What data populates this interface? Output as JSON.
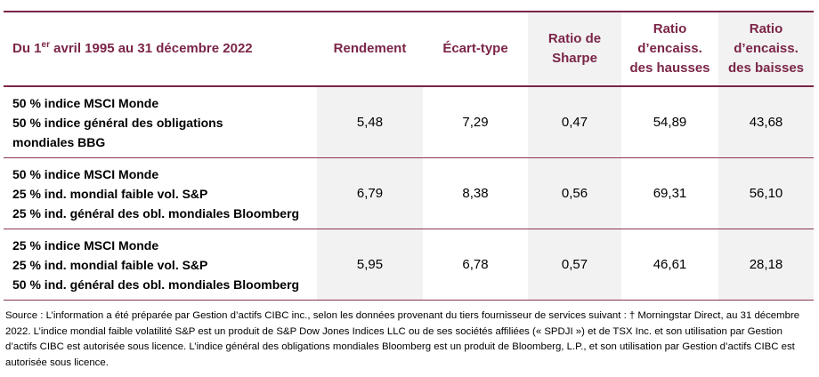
{
  "header": {
    "period_prefix": "Du 1",
    "period_sup": "er",
    "period_suffix": " avril 1995 au 31 décembre 2022",
    "col_return": "Rendement",
    "col_stdev": "Écart-type",
    "col_sharpe_1": "Ratio de",
    "col_sharpe_2": "Sharpe",
    "col_upcap_1": "Ratio",
    "col_upcap_2": "d’encaiss.",
    "col_upcap_3": "des hausses",
    "col_downcap_1": "Ratio",
    "col_downcap_2": "d’encaiss.",
    "col_downcap_3": "des baisses"
  },
  "rows": [
    {
      "labels": [
        "50 % indice MSCI Monde",
        "50 % indice général des obligations",
        "mondiales BBG"
      ],
      "return": "5,48",
      "stdev": "7,29",
      "sharpe": "0,47",
      "upcap": "54,89",
      "downcap": "43,68"
    },
    {
      "labels": [
        "50 % indice MSCI Monde",
        "25 % ind. mondial faible vol. S&P",
        "25 % ind. général des obl. mondiales Bloomberg"
      ],
      "return": "6,79",
      "stdev": "8,38",
      "sharpe": "0,56",
      "upcap": "69,31",
      "downcap": "56,10"
    },
    {
      "labels": [
        "25 % indice MSCI Monde",
        "25 % ind. mondial faible vol. S&P",
        "50 % ind. général des obl. mondiales Bloomberg"
      ],
      "return": "5,95",
      "stdev": "6,78",
      "sharpe": "0,57",
      "upcap": "46,61",
      "downcap": "28,18"
    }
  ],
  "source": "Source : L’information a été préparée par Gestion d’actifs CIBC inc., selon les données provenant du tiers fournisseur de services suivant : † Morningstar Direct, au 31 décembre 2022. L’indice mondial faible volatilité S&P est un produit de S&P Dow Jones Indices LLC ou de ses sociétés affiliées (« SPDJI ») et de TSX Inc. et son utilisation par Gestion d’actifs CIBC est autorisée sous licence. L’indice général des obligations mondiales Bloomberg est un produit de Bloomberg, L.P., et son utilisation par Gestion d’actifs CIBC est autorisée sous licence.",
  "colors": {
    "accent": "#7b2548",
    "shade": "#f2f2f2"
  }
}
